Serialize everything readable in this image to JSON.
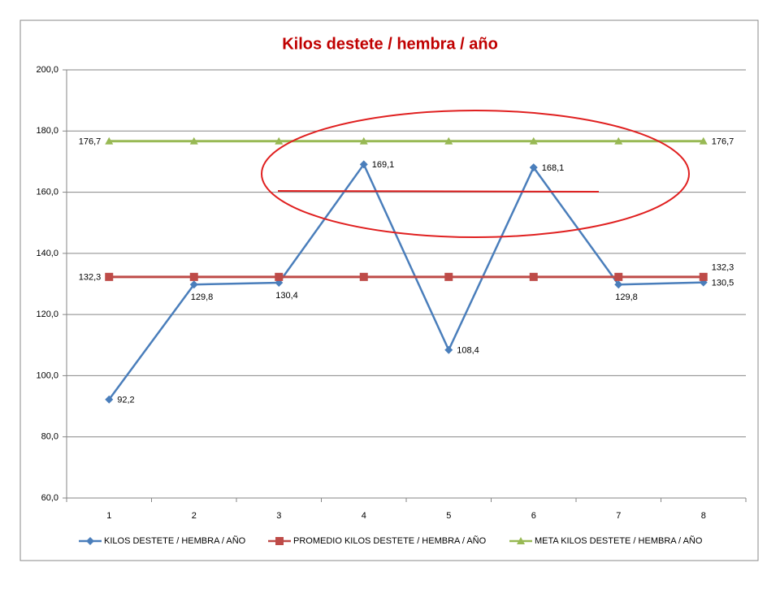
{
  "chart_data": {
    "type": "line",
    "title": "Kilos destete / hembra / año",
    "categories": [
      "1",
      "2",
      "3",
      "4",
      "5",
      "6",
      "7",
      "8"
    ],
    "series": [
      {
        "name": "KILOS DESTETE  / HEMBRA  / AÑO",
        "color": "#4a7ebb",
        "marker": "diamond",
        "values": [
          92.2,
          129.8,
          130.4,
          169.1,
          108.4,
          168.1,
          129.8,
          130.5
        ],
        "value_labels": [
          "92,2",
          "129,8",
          "130,4",
          "169,1",
          "108,4",
          "168,1",
          "129,8",
          "130,5"
        ]
      },
      {
        "name": "PROMEDIO KILOS DESTETE  / HEMBRA  / AÑO",
        "color": "#be4b48",
        "marker": "square",
        "values": [
          132.3,
          132.3,
          132.3,
          132.3,
          132.3,
          132.3,
          132.3,
          132.3
        ],
        "value_labels": [
          "132,3",
          null,
          null,
          null,
          null,
          null,
          null,
          "132,3"
        ]
      },
      {
        "name": "META KILOS DESTETE  / HEMBRA  / AÑO",
        "color": "#98b954",
        "marker": "triangle",
        "values": [
          176.7,
          176.7,
          176.7,
          176.7,
          176.7,
          176.7,
          176.7,
          176.7
        ],
        "value_labels": [
          "176,7",
          null,
          null,
          null,
          null,
          null,
          null,
          "176,7"
        ]
      }
    ],
    "ylim": [
      60,
      200
    ],
    "yticks": [
      {
        "value": 60,
        "label": "60,0"
      },
      {
        "value": 80,
        "label": "80,0"
      },
      {
        "value": 100,
        "label": "100,0"
      },
      {
        "value": 120,
        "label": "120,0"
      },
      {
        "value": 140,
        "label": "140,0"
      },
      {
        "value": 160,
        "label": "160,0"
      },
      {
        "value": 180,
        "label": "180,0"
      },
      {
        "value": 200,
        "label": "200,0"
      }
    ],
    "grid": true,
    "legend": "bottom"
  }
}
